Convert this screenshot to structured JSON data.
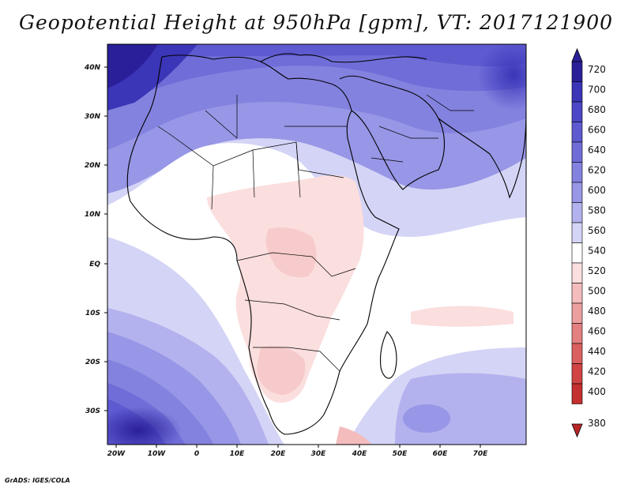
{
  "title": "Geopotential Height at 950hPa [gpm], VT: 2017121900",
  "credit": "GrADS: IGES/COLA",
  "axes": {
    "x_ticks": [
      "20W",
      "10W",
      "0",
      "10E",
      "20E",
      "30E",
      "40E",
      "50E",
      "60E",
      "70E"
    ],
    "y_ticks": [
      "40N",
      "30N",
      "20N",
      "10N",
      "EQ",
      "10S",
      "20S",
      "30S"
    ]
  },
  "colorbar": {
    "levels": [
      "720",
      "700",
      "680",
      "660",
      "640",
      "620",
      "600",
      "580",
      "560",
      "540",
      "520",
      "500",
      "480",
      "460",
      "440",
      "420",
      "400",
      "380"
    ],
    "colors": [
      "#2a1f99",
      "#3b35b8",
      "#4c47c6",
      "#5e5ad0",
      "#706dd8",
      "#8482df",
      "#9896e6",
      "#b3b2ee",
      "#d4d4f6",
      "#ffffff",
      "#fbdede",
      "#f4bcbc",
      "#ec9f9f",
      "#e48080",
      "#db6060",
      "#d04444",
      "#c42f2f",
      "#b82626"
    ]
  },
  "map": {
    "lon_range": [
      -22,
      80
    ],
    "lat_range": [
      -37,
      45
    ],
    "variable": "Geopotential Height",
    "level": "950hPa",
    "units": "gpm",
    "valid_time": "2017121900"
  }
}
